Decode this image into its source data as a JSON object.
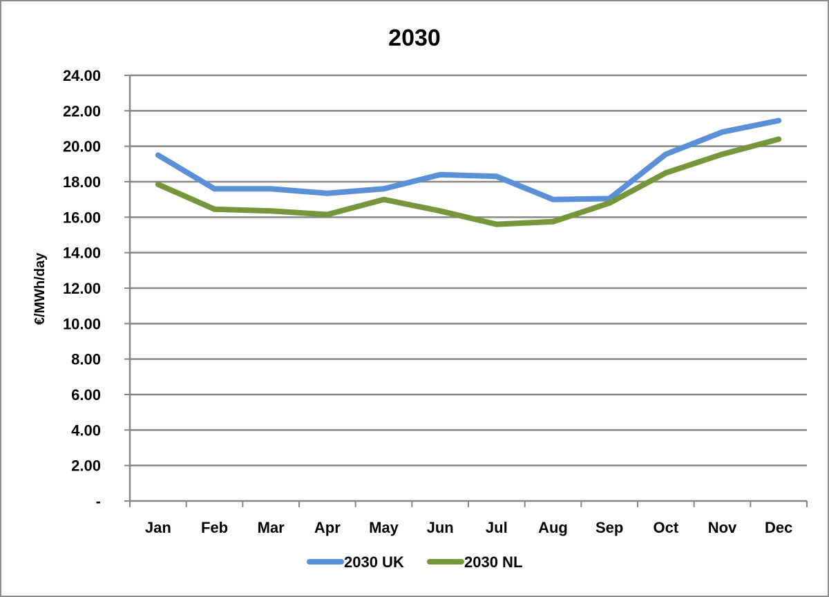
{
  "chart_data": {
    "type": "line",
    "title": "2030",
    "xlabel": "",
    "ylabel": "€/MWh/day",
    "ylim": [
      0,
      24
    ],
    "y_ticks": [
      0,
      2,
      4,
      6,
      8,
      10,
      12,
      14,
      16,
      18,
      20,
      22,
      24
    ],
    "y_tick_labels": [
      "-",
      "2.00",
      "4.00",
      "6.00",
      "8.00",
      "10.00",
      "12.00",
      "14.00",
      "16.00",
      "18.00",
      "20.00",
      "22.00",
      "24.00"
    ],
    "categories": [
      "Jan",
      "Feb",
      "Mar",
      "Apr",
      "May",
      "Jun",
      "Jul",
      "Aug",
      "Sep",
      "Oct",
      "Nov",
      "Dec"
    ],
    "grid": "horizontal",
    "legend_position": "bottom",
    "series": [
      {
        "name": "2030 UK",
        "color": "#5b8fd6",
        "values": [
          19.5,
          17.6,
          17.6,
          17.35,
          17.6,
          18.4,
          18.3,
          17.0,
          17.05,
          19.55,
          20.8,
          21.45
        ]
      },
      {
        "name": "2030 NL",
        "color": "#77963c",
        "values": [
          17.85,
          16.45,
          16.35,
          16.15,
          17.0,
          16.35,
          15.6,
          15.75,
          16.8,
          18.5,
          19.55,
          20.4
        ]
      }
    ]
  }
}
